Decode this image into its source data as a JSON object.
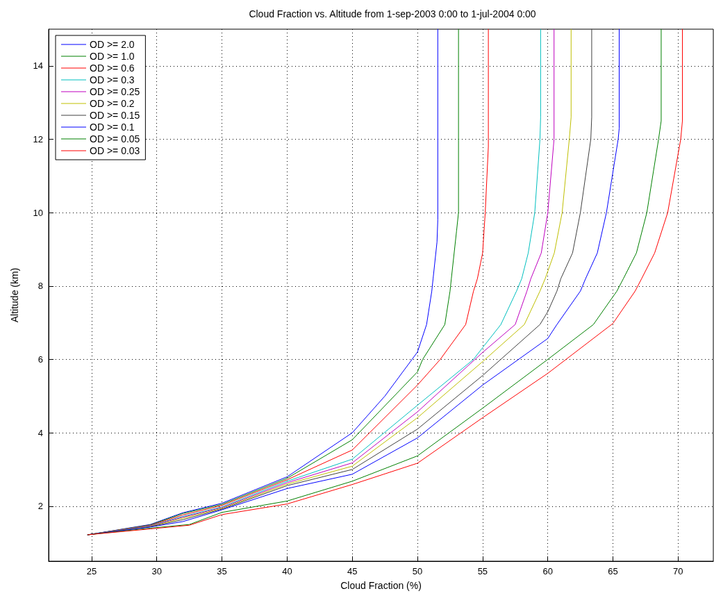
{
  "chart_data": {
    "type": "line",
    "title": "Cloud Fraction vs. Altitude from 1-sep-2003 0:00 to 1-jul-2004 0:00",
    "xlabel": "Cloud Fraction (%)",
    "ylabel": "Altitude (km)",
    "xlim": [
      21.7,
      72.7
    ],
    "ylim": [
      0.5,
      15
    ],
    "xticks": [
      25,
      30,
      35,
      40,
      45,
      50,
      55,
      60,
      65,
      70
    ],
    "yticks": [
      2,
      4,
      6,
      8,
      10,
      12,
      14
    ],
    "grid": true,
    "legend": "top left",
    "marker": "none",
    "line_style": "solid",
    "series": [
      {
        "name": "OD >= 2.0",
        "color": "#0000ff",
        "x": [
          24.7,
          29.5,
          32,
          35,
          40,
          45,
          47.5,
          50,
          50.7,
          51.1,
          51.2,
          51.5,
          51.56,
          51.56
        ],
        "values": [
          1.22,
          1.5,
          1.82,
          2.08,
          2.8,
          4.0,
          5.0,
          6.2,
          6.95,
          7.86,
          8.2,
          9.2,
          9.8,
          15
        ]
      },
      {
        "name": "OD >= 1.0",
        "color": "#008000",
        "x": [
          24.7,
          29.5,
          32,
          35,
          40,
          45,
          50,
          50.4,
          52.1,
          52.5,
          52.6,
          53.0,
          53.15,
          53.15
        ],
        "values": [
          1.22,
          1.49,
          1.8,
          2.05,
          2.76,
          3.81,
          5.66,
          6.0,
          6.95,
          7.86,
          8.2,
          9.5,
          10,
          15
        ]
      },
      {
        "name": "OD >= 0.6",
        "color": "#ff0000",
        "x": [
          24.7,
          29.5,
          32,
          35,
          40,
          45,
          50,
          51.75,
          53.7,
          54.3,
          54.6,
          55.0,
          55.2,
          55.44,
          55.44
        ],
        "values": [
          1.22,
          1.48,
          1.76,
          2.02,
          2.72,
          3.53,
          5.3,
          6.0,
          6.95,
          7.86,
          8.2,
          8.9,
          10,
          11.8,
          15
        ]
      },
      {
        "name": "OD >= 0.3",
        "color": "#00bfbf",
        "x": [
          24.7,
          29.5,
          32,
          35,
          40,
          45,
          50,
          54.3,
          55,
          56.4,
          57.6,
          58.0,
          58.5,
          59.0,
          59.4,
          59.45,
          59.45
        ],
        "values": [
          1.22,
          1.47,
          1.72,
          1.98,
          2.68,
          3.28,
          4.75,
          6.0,
          6.32,
          6.95,
          7.86,
          8.2,
          8.9,
          10,
          12,
          12.6,
          15
        ]
      },
      {
        "name": "OD >= 0.25",
        "color": "#bf00bf",
        "x": [
          24.7,
          29.5,
          32,
          35,
          40,
          45,
          50,
          55,
          57.5,
          58.4,
          58.7,
          59.5,
          60.0,
          60.48,
          60.48
        ],
        "values": [
          1.22,
          1.46,
          1.7,
          1.96,
          2.64,
          3.18,
          4.57,
          6.19,
          6.95,
          7.86,
          8.2,
          8.9,
          10,
          12,
          15
        ]
      },
      {
        "name": "OD >= 0.2",
        "color": "#bfbf00",
        "x": [
          24.7,
          29.5,
          32,
          35,
          40,
          45,
          50,
          55,
          58.2,
          59.4,
          59.8,
          60.5,
          61.1,
          61.65,
          61.79,
          61.79
        ],
        "values": [
          1.22,
          1.45,
          1.67,
          1.94,
          2.6,
          3.09,
          4.41,
          5.94,
          6.95,
          7.86,
          8.2,
          8.9,
          10,
          12,
          12.6,
          15
        ]
      },
      {
        "name": "OD >= 0.15",
        "color": "#404040",
        "x": [
          24.7,
          29.5,
          32,
          35,
          40,
          45,
          50,
          55,
          59.4,
          60,
          60.7,
          61.0,
          61.9,
          62.5,
          63.3,
          63.37,
          63.37
        ],
        "values": [
          1.22,
          1.44,
          1.63,
          1.92,
          2.56,
          3.0,
          4.1,
          5.56,
          6.95,
          7.3,
          7.86,
          8.2,
          8.9,
          10,
          12,
          12.6,
          15
        ]
      },
      {
        "name": "OD >= 0.1",
        "color": "#0000ff",
        "x": [
          24.7,
          29.5,
          32,
          35,
          40,
          45,
          50,
          55,
          60,
          60.7,
          62.5,
          62.9,
          63.8,
          64.5,
          65.4,
          65.48,
          65.48
        ],
        "values": [
          1.22,
          1.43,
          1.58,
          1.9,
          2.48,
          2.87,
          3.86,
          5.3,
          6.57,
          6.95,
          7.86,
          8.2,
          8.9,
          10,
          12,
          12.3,
          15
        ]
      },
      {
        "name": "OD >= 0.05",
        "color": "#008000",
        "x": [
          24.7,
          29.5,
          32.5,
          35,
          40,
          45,
          50,
          55,
          60,
          63.5,
          65,
          65.3,
          65.8,
          66.8,
          67.6,
          68.5,
          68.7,
          68.7
        ],
        "values": [
          1.22,
          1.4,
          1.5,
          1.83,
          2.14,
          2.68,
          3.37,
          4.67,
          6.0,
          6.95,
          7.71,
          7.86,
          8.2,
          8.9,
          10,
          12,
          12.5,
          15
        ]
      },
      {
        "name": "OD >= 0.03",
        "color": "#ff0000",
        "x": [
          24.7,
          29.5,
          32.5,
          35,
          40,
          45,
          50,
          55,
          60,
          65,
          66.7,
          67.2,
          68.2,
          69.2,
          70.2,
          70.33,
          70.33
        ],
        "values": [
          1.22,
          1.38,
          1.48,
          1.77,
          2.06,
          2.59,
          3.17,
          4.41,
          5.62,
          6.98,
          7.86,
          8.2,
          8.9,
          10,
          12,
          12.5,
          15
        ]
      }
    ]
  }
}
